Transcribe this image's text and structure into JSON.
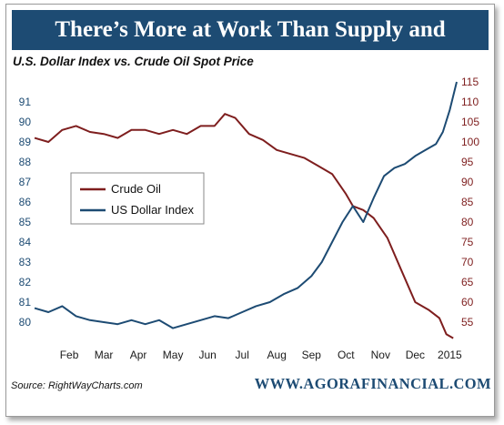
{
  "banner": {
    "title": "There’s More at Work Than Supply and Demand"
  },
  "subtitle": "U.S. Dollar Index vs. Crude Oil Spot Price",
  "source": "Source: RightWayCharts.com",
  "website": "WWW.AGORAFINANCIAL.COM",
  "colors": {
    "banner": "#1d4b73",
    "oil": "#7e1e1e",
    "dollar": "#1d4b73"
  },
  "chart_data": {
    "type": "line",
    "title": "U.S. Dollar Index vs. Crude Oil Spot Price",
    "xlabel": "",
    "x_ticks": [
      "Feb",
      "Mar",
      "Apr",
      "May",
      "Jun",
      "Jul",
      "Aug",
      "Sep",
      "Oct",
      "Nov",
      "Dec",
      "2015"
    ],
    "x_range": [
      0,
      12.2
    ],
    "y_left": {
      "label": "",
      "range": [
        79,
        92
      ],
      "ticks": [
        80,
        81,
        82,
        83,
        84,
        85,
        86,
        87,
        88,
        89,
        90,
        91
      ]
    },
    "y_right": {
      "label": "",
      "range": [
        50,
        115
      ],
      "ticks": [
        55,
        60,
        65,
        70,
        75,
        80,
        85,
        90,
        95,
        100,
        105,
        110,
        115
      ]
    },
    "grid": false,
    "legend_position": "left-middle",
    "series": [
      {
        "name": "Crude Oil",
        "axis": "right",
        "x": [
          0,
          0.4,
          0.8,
          1.2,
          1.6,
          2.0,
          2.4,
          2.8,
          3.2,
          3.6,
          4.0,
          4.4,
          4.8,
          5.2,
          5.5,
          5.8,
          6.2,
          6.6,
          7.0,
          7.4,
          7.8,
          8.2,
          8.6,
          9.0,
          9.2,
          9.5,
          9.8,
          10.2,
          10.6,
          11.0,
          11.4,
          11.7,
          11.9,
          12.1
        ],
        "values": [
          101,
          100,
          103,
          104,
          102.5,
          102,
          101,
          103,
          103,
          102,
          103,
          102,
          104,
          104,
          107,
          106,
          102,
          100.5,
          98,
          97,
          96,
          94,
          92,
          87,
          84,
          83,
          81,
          76,
          68,
          60,
          58,
          56,
          52,
          51
        ]
      },
      {
        "name": "US Dollar Index",
        "axis": "left",
        "x": [
          0,
          0.4,
          0.8,
          1.2,
          1.6,
          2.0,
          2.4,
          2.8,
          3.2,
          3.6,
          4.0,
          4.4,
          4.8,
          5.2,
          5.6,
          6.0,
          6.4,
          6.8,
          7.2,
          7.6,
          8.0,
          8.3,
          8.6,
          8.9,
          9.2,
          9.5,
          9.8,
          10.1,
          10.4,
          10.7,
          11.0,
          11.3,
          11.6,
          11.8,
          12.0,
          12.2
        ],
        "values": [
          80.7,
          80.5,
          80.8,
          80.3,
          80.1,
          80.0,
          79.9,
          80.1,
          79.9,
          80.1,
          79.7,
          79.9,
          80.1,
          80.3,
          80.2,
          80.5,
          80.8,
          81.0,
          81.4,
          81.7,
          82.3,
          83.0,
          84.0,
          85.0,
          85.8,
          85.0,
          86.2,
          87.3,
          87.7,
          87.9,
          88.3,
          88.6,
          88.9,
          89.5,
          90.6,
          92.0
        ]
      }
    ]
  }
}
